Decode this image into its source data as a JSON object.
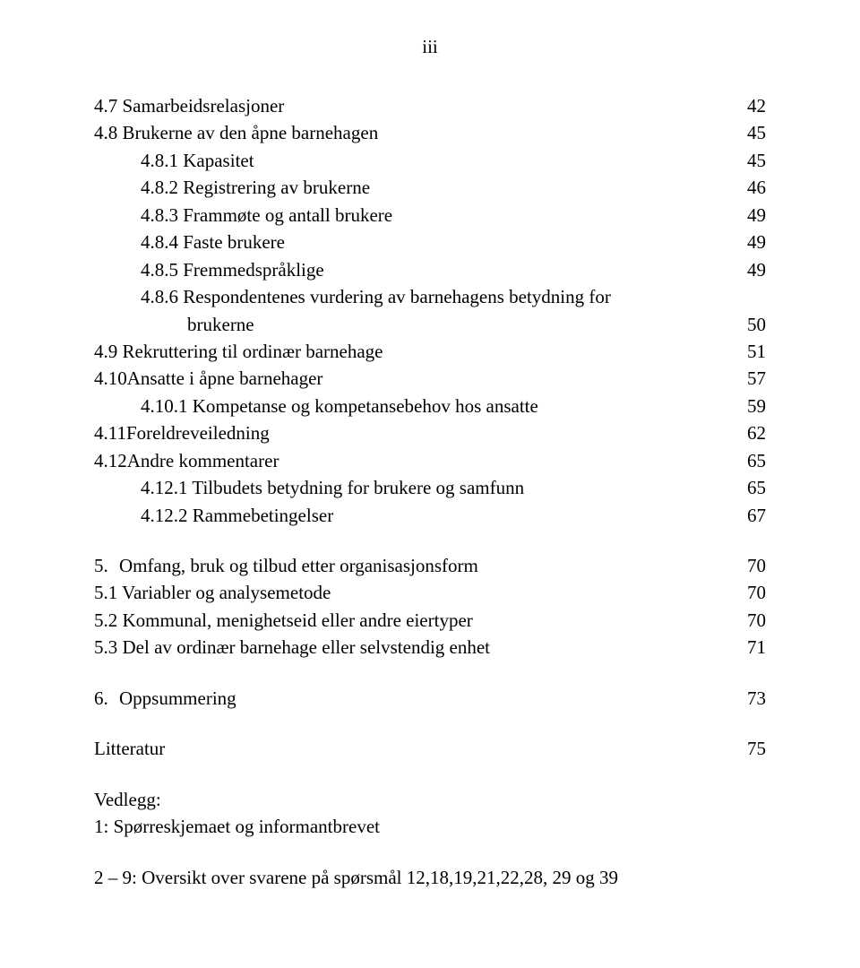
{
  "page_marker": "iii",
  "entries": [
    {
      "level": 1,
      "text": "4.7 Samarbeidsrelasjoner",
      "page": "42"
    },
    {
      "level": 1,
      "text": "4.8 Brukerne av den åpne barnehagen",
      "page": "45"
    },
    {
      "level": 2,
      "text": "4.8.1 Kapasitet",
      "page": "45"
    },
    {
      "level": 2,
      "text": "4.8.2 Registrering av brukerne",
      "page": "46"
    },
    {
      "level": 2,
      "text": "4.8.3 Frammøte og antall brukere",
      "page": "49"
    },
    {
      "level": 2,
      "text": "4.8.4 Faste brukere",
      "page": "49"
    },
    {
      "level": 2,
      "text": "4.8.5 Fremmedspråklige",
      "page": "49"
    },
    {
      "level": 2,
      "text": "4.8.6 Respondentenes vurdering av barnehagens betydning for",
      "wrap": "brukerne",
      "page": "50"
    },
    {
      "level": 1,
      "text": "4.9 Rekruttering til ordinær barnehage",
      "page": "51"
    },
    {
      "level": 1,
      "text": "4.10Ansatte i åpne barnehager",
      "page": "57"
    },
    {
      "level": 2,
      "text": "4.10.1 Kompetanse og kompetansebehov hos ansatte",
      "page": "59"
    },
    {
      "level": 1,
      "text": "4.11Foreldreveiledning",
      "page": "62"
    },
    {
      "level": 1,
      "text": "4.12Andre kommentarer",
      "page": "65"
    },
    {
      "level": 2,
      "text": "4.12.1 Tilbudets betydning for brukere og samfunn",
      "page": "65"
    },
    {
      "level": 2,
      "text": "4.12.2 Rammebetingelser",
      "page": "67"
    }
  ],
  "section5": {
    "head": {
      "num": "5.",
      "text": "Omfang, bruk og tilbud etter organisasjonsform",
      "page": "70"
    },
    "items": [
      {
        "text": "5.1 Variabler og analysemetode",
        "page": "70"
      },
      {
        "text": "5.2 Kommunal, menighetseid eller andre eiertyper",
        "page": "70"
      },
      {
        "text": "5.3 Del av ordinær barnehage eller selvstendig enhet",
        "page": "71"
      }
    ]
  },
  "section6": {
    "num": "6.",
    "text": "Oppsummering",
    "page": "73"
  },
  "literature": {
    "text": "Litteratur",
    "page": "75"
  },
  "vedlegg_heading": "Vedlegg:",
  "vedlegg_line1": "1: Spørreskjemaet og informantbrevet",
  "vedlegg_line2": "2 – 9: Oversikt over svarene på spørsmål 12,18,19,21,22,28, 29 og 39"
}
